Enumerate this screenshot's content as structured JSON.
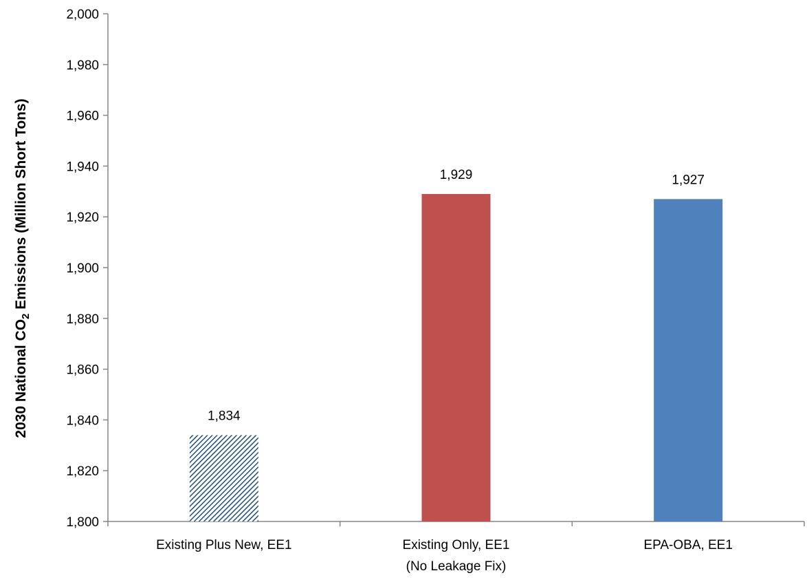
{
  "chart_data": {
    "type": "bar",
    "categories": [
      [
        "Existing Plus New, EE1"
      ],
      [
        "Existing Only, EE1",
        "(No Leakage Fix)"
      ],
      [
        "EPA-OBA, EE1"
      ]
    ],
    "values": [
      1834,
      1929,
      1927
    ],
    "value_labels": [
      "1,834",
      "1,929",
      "1,927"
    ],
    "bar_styles": [
      "hatched",
      "solid",
      "solid"
    ],
    "bar_colors": [
      "#1f4e79",
      "#c0504d",
      "#4f81bd"
    ],
    "ylabel_parts": [
      "2030 National CO",
      "2",
      " Emissions (Million Short Tons)"
    ],
    "ylim": [
      1800,
      2000
    ],
    "yticks": [
      1800,
      1820,
      1840,
      1860,
      1880,
      1900,
      1920,
      1940,
      1960,
      1980,
      2000
    ],
    "ytick_labels": [
      "1,800",
      "1,820",
      "1,840",
      "1,860",
      "1,880",
      "1,900",
      "1,920",
      "1,940",
      "1,960",
      "1,980",
      "2,000"
    ],
    "grid": false,
    "legend": "none"
  }
}
